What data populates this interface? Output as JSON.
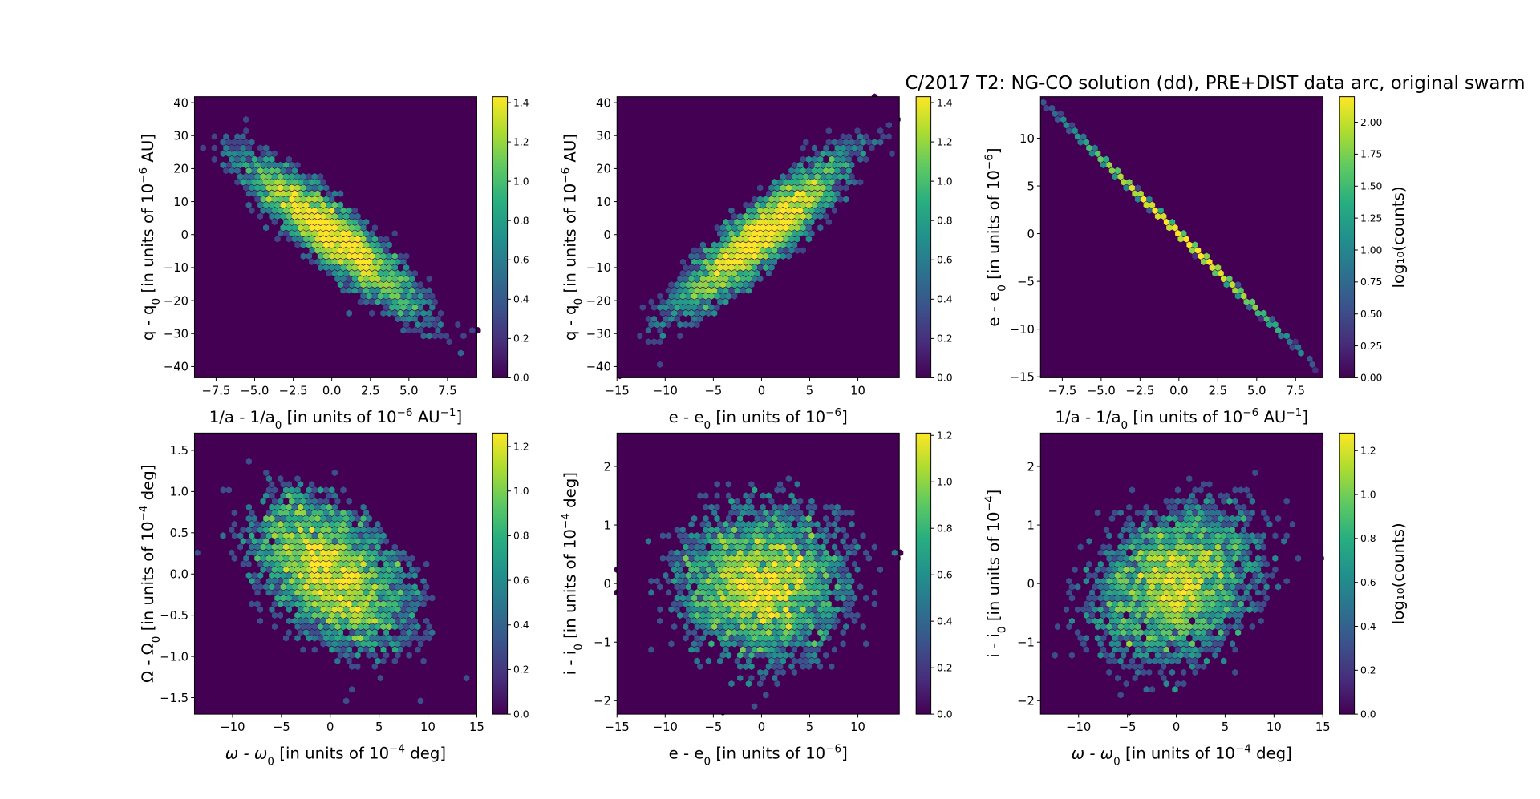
{
  "chart_data": {
    "type": "hexbin-grid",
    "title": "C/2017 T2: NG-CO solution (dd), PRE+DIST data arc,  original swarm",
    "colormap": "viridis",
    "colors": {
      "background": "#440154",
      "axis": "#000000"
    },
    "panels": [
      {
        "xlabel": [
          {
            "t": "1/a - 1/a"
          },
          {
            "t": "0",
            "s": "sub"
          },
          {
            "t": " [in units of 10"
          },
          {
            "t": "−6",
            "s": "sup"
          },
          {
            "t": " AU"
          },
          {
            "t": "−1",
            "s": "sup"
          },
          {
            "t": "]"
          }
        ],
        "ylabel": [
          {
            "t": "q - q"
          },
          {
            "t": "0",
            "s": "sub"
          },
          {
            "t": " [in units of 10"
          },
          {
            "t": "−6",
            "s": "sup"
          },
          {
            "t": " AU]"
          }
        ],
        "xlim": [
          -8.9,
          9.4
        ],
        "ylim": [
          -43.4,
          41.8
        ],
        "xticks": [
          "−7.5",
          "−5.0",
          "−2.5",
          "0.0",
          "2.5",
          "5.0",
          "7.5"
        ],
        "xtick_values": [
          -7.5,
          -5,
          -2.5,
          0,
          2.5,
          5,
          7.5
        ],
        "yticks": [
          "−40",
          "−30",
          "−20",
          "−10",
          "0",
          "10",
          "20",
          "30",
          "40"
        ],
        "ytick_values": [
          -40,
          -30,
          -20,
          -10,
          0,
          10,
          20,
          30,
          40
        ],
        "colorbar": {
          "range": [
            0,
            1.43
          ],
          "ticks": [
            "0.0",
            "0.2",
            "0.4",
            "0.6",
            "0.8",
            "1.0",
            "1.2",
            "1.4"
          ],
          "tick_values": [
            0,
            0.2,
            0.4,
            0.6,
            0.8,
            1.0,
            1.2,
            1.4
          ],
          "label": ""
        },
        "distribution": {
          "sx": 3.0,
          "sy": 12.5,
          "corr": -0.9,
          "n": 5000,
          "seed": 11
        }
      },
      {
        "xlabel": [
          {
            "t": "e - e"
          },
          {
            "t": "0",
            "s": "sub"
          },
          {
            "t": " [in units of 10"
          },
          {
            "t": "−6",
            "s": "sup"
          },
          {
            "t": "]"
          }
        ],
        "ylabel": [
          {
            "t": "q - q"
          },
          {
            "t": "0",
            "s": "sub"
          },
          {
            "t": " [in units of 10"
          },
          {
            "t": "−6",
            "s": "sup"
          },
          {
            "t": " AU]"
          }
        ],
        "xlim": [
          -15,
          14.3
        ],
        "ylim": [
          -43.4,
          41.8
        ],
        "xticks": [
          "−15",
          "−10",
          "−5",
          "0",
          "5",
          "10"
        ],
        "xtick_values": [
          -15,
          -10,
          -5,
          0,
          5,
          10
        ],
        "yticks": [
          "−40",
          "−30",
          "−20",
          "−10",
          "0",
          "10",
          "20",
          "30",
          "40"
        ],
        "ytick_values": [
          -40,
          -30,
          -20,
          -10,
          0,
          10,
          20,
          30,
          40
        ],
        "colorbar": {
          "range": [
            0,
            1.43
          ],
          "ticks": [
            "0.0",
            "0.2",
            "0.4",
            "0.6",
            "0.8",
            "1.0",
            "1.2",
            "1.4"
          ],
          "tick_values": [
            0,
            0.2,
            0.4,
            0.6,
            0.8,
            1.0,
            1.2,
            1.4
          ],
          "label": ""
        },
        "distribution": {
          "sx": 4.7,
          "sy": 12.5,
          "corr": 0.9,
          "n": 5000,
          "seed": 22
        }
      },
      {
        "xlabel": [
          {
            "t": "1/a - 1/a"
          },
          {
            "t": "0",
            "s": "sub"
          },
          {
            "t": " [in units of 10"
          },
          {
            "t": "−6",
            "s": "sup"
          },
          {
            "t": " AU"
          },
          {
            "t": "−1",
            "s": "sup"
          },
          {
            "t": "]"
          }
        ],
        "ylabel": [
          {
            "t": "e - e"
          },
          {
            "t": "0",
            "s": "sub"
          },
          {
            "t": " [in units of 10"
          },
          {
            "t": "−6",
            "s": "sup"
          },
          {
            "t": "]"
          }
        ],
        "xlim": [
          -8.9,
          9.25
        ],
        "ylim": [
          -15.1,
          14.35
        ],
        "xticks": [
          "−7.5",
          "−5.0",
          "−2.5",
          "0.0",
          "2.5",
          "5.0",
          "7.5"
        ],
        "xtick_values": [
          -7.5,
          -5,
          -2.5,
          0,
          2.5,
          5,
          7.5
        ],
        "yticks": [
          "−15",
          "−10",
          "−5",
          "0",
          "5",
          "10"
        ],
        "ytick_values": [
          -15,
          -10,
          -5,
          0,
          5,
          10
        ],
        "colorbar": {
          "range": [
            0,
            2.2
          ],
          "ticks": [
            "0.00",
            "0.25",
            "0.50",
            "0.75",
            "1.00",
            "1.25",
            "1.50",
            "1.75",
            "2.00"
          ],
          "tick_values": [
            0,
            0.25,
            0.5,
            0.75,
            1,
            1.25,
            1.5,
            1.75,
            2
          ],
          "label": "log₁₀(counts)"
        },
        "distribution": {
          "sx": 3.0,
          "sy": 4.74,
          "corr": -0.9999,
          "n": 5000,
          "seed": 33
        }
      },
      {
        "xlabel": [
          {
            "t": "ω - ω",
            "s": "it"
          },
          {
            "t": "0",
            "s": "sub"
          },
          {
            "t": " [in units of 10"
          },
          {
            "t": "−4",
            "s": "sup"
          },
          {
            "t": " deg]"
          }
        ],
        "ylabel": [
          {
            "t": "Ω - Ω"
          },
          {
            "t": "0",
            "s": "sub"
          },
          {
            "t": " [in units of 10"
          },
          {
            "t": "−4",
            "s": "sup"
          },
          {
            "t": " deg]"
          }
        ],
        "xlim": [
          -13.9,
          15
        ],
        "ylim": [
          -1.7,
          1.71
        ],
        "xticks": [
          "−10",
          "−5",
          "0",
          "5",
          "10",
          "15"
        ],
        "xtick_values": [
          -10,
          -5,
          0,
          5,
          10,
          15
        ],
        "yticks": [
          "−1.5",
          "−1.0",
          "−0.5",
          "0.0",
          "0.5",
          "1.0",
          "1.5"
        ],
        "ytick_values": [
          -1.5,
          -1,
          -0.5,
          0,
          0.5,
          1,
          1.5
        ],
        "colorbar": {
          "range": [
            0,
            1.26
          ],
          "ticks": [
            "0.0",
            "0.2",
            "0.4",
            "0.6",
            "0.8",
            "1.0",
            "1.2"
          ],
          "tick_values": [
            0,
            0.2,
            0.4,
            0.6,
            0.8,
            1.0,
            1.2
          ],
          "label": ""
        },
        "distribution": {
          "sx": 4.3,
          "sy": 0.5,
          "corr": -0.45,
          "n": 5000,
          "seed": 44
        }
      },
      {
        "xlabel": [
          {
            "t": "e - e"
          },
          {
            "t": "0",
            "s": "sub"
          },
          {
            "t": " [in units of 10"
          },
          {
            "t": "−6",
            "s": "sup"
          },
          {
            "t": "]"
          }
        ],
        "ylabel": [
          {
            "t": "i - i"
          },
          {
            "t": "0",
            "s": "sub"
          },
          {
            "t": " [in units of 10"
          },
          {
            "t": "−4",
            "s": "sup"
          },
          {
            "t": " deg]"
          }
        ],
        "xlim": [
          -15,
          14.3
        ],
        "ylim": [
          -2.23,
          2.57
        ],
        "xticks": [
          "−15",
          "−10",
          "−5",
          "0",
          "5",
          "10"
        ],
        "xtick_values": [
          -15,
          -10,
          -5,
          0,
          5,
          10
        ],
        "yticks": [
          "−2",
          "−1",
          "0",
          "1",
          "2"
        ],
        "ytick_values": [
          -2,
          -1,
          0,
          1,
          2
        ],
        "colorbar": {
          "range": [
            0,
            1.21
          ],
          "ticks": [
            "0.0",
            "0.2",
            "0.4",
            "0.6",
            "0.8",
            "1.0",
            "1.2"
          ],
          "tick_values": [
            0,
            0.2,
            0.4,
            0.6,
            0.8,
            1.0,
            1.2
          ],
          "label": ""
        },
        "distribution": {
          "sx": 4.7,
          "sy": 0.7,
          "corr": 0.0,
          "n": 5000,
          "seed": 55
        }
      },
      {
        "xlabel": [
          {
            "t": "ω - ω",
            "s": "it"
          },
          {
            "t": "0",
            "s": "sub"
          },
          {
            "t": " [in units of 10"
          },
          {
            "t": "−4",
            "s": "sup"
          },
          {
            "t": " deg]"
          }
        ],
        "ylabel": [
          {
            "t": "i - i"
          },
          {
            "t": "0",
            "s": "sub"
          },
          {
            "t": " [in units of 10"
          },
          {
            "t": "−4",
            "s": "sup"
          },
          {
            "t": "]"
          }
        ],
        "xlim": [
          -13.9,
          15
        ],
        "ylim": [
          -2.23,
          2.57
        ],
        "xticks": [
          "−10",
          "−5",
          "0",
          "5",
          "10",
          "15"
        ],
        "xtick_values": [
          -10,
          -5,
          0,
          5,
          10,
          15
        ],
        "yticks": [
          "−2",
          "−1",
          "0",
          "1",
          "2"
        ],
        "ytick_values": [
          -2,
          -1,
          0,
          1,
          2
        ],
        "colorbar": {
          "range": [
            0,
            1.28
          ],
          "ticks": [
            "0.0",
            "0.2",
            "0.4",
            "0.6",
            "0.8",
            "1.0",
            "1.2"
          ],
          "tick_values": [
            0,
            0.2,
            0.4,
            0.6,
            0.8,
            1.0,
            1.2
          ],
          "label": "log₁₀(counts)"
        },
        "distribution": {
          "sx": 4.5,
          "sy": 0.7,
          "corr": 0.25,
          "n": 5000,
          "seed": 66
        }
      }
    ]
  }
}
